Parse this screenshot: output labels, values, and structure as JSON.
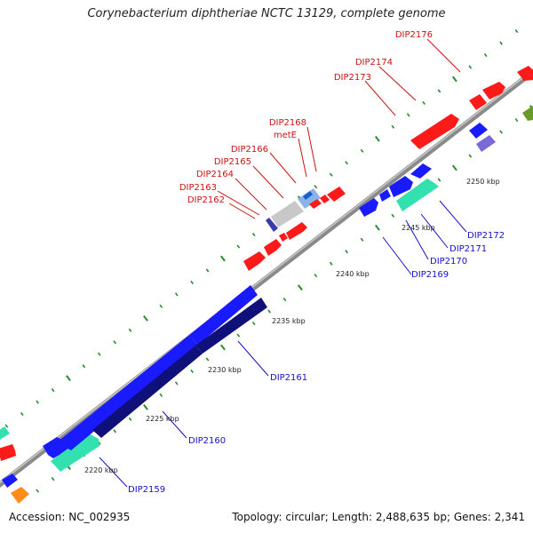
{
  "title": "Corynebacterium diphtheriae NCTC 13129, complete genome",
  "footer": {
    "accession": "Accession: NC_002935",
    "topology": "Topology: circular; Length: 2,488,635 bp; Genes: 2,341"
  },
  "colors": {
    "backbone": "#888888",
    "forward_gene": "#ff1a1a",
    "reverse_gene": "#1a1aff",
    "cds_dark": "#10107a",
    "rna_cyan": "#33e0b0",
    "label_red": "#cc1111",
    "label_blue": "#1111cc",
    "tick_green": "#2a8a2a"
  },
  "scale_labels": [
    "2220 kbp",
    "2225 kbp",
    "2230 kbp",
    "2235 kbp",
    "2240 kbp",
    "2245 kbp",
    "2250 kbp"
  ],
  "gene_labels_forward": [
    "DIP2176",
    "DIP2174",
    "DIP2173",
    "DIP2168",
    "metE",
    "DIP2166",
    "DIP2165",
    "DIP2164",
    "DIP2163",
    "DIP2162"
  ],
  "gene_labels_reverse": [
    "DIP2172",
    "DIP2171",
    "DIP2170",
    "DIP2169",
    "DIP2161",
    "DIP2160",
    "DIP2159"
  ]
}
